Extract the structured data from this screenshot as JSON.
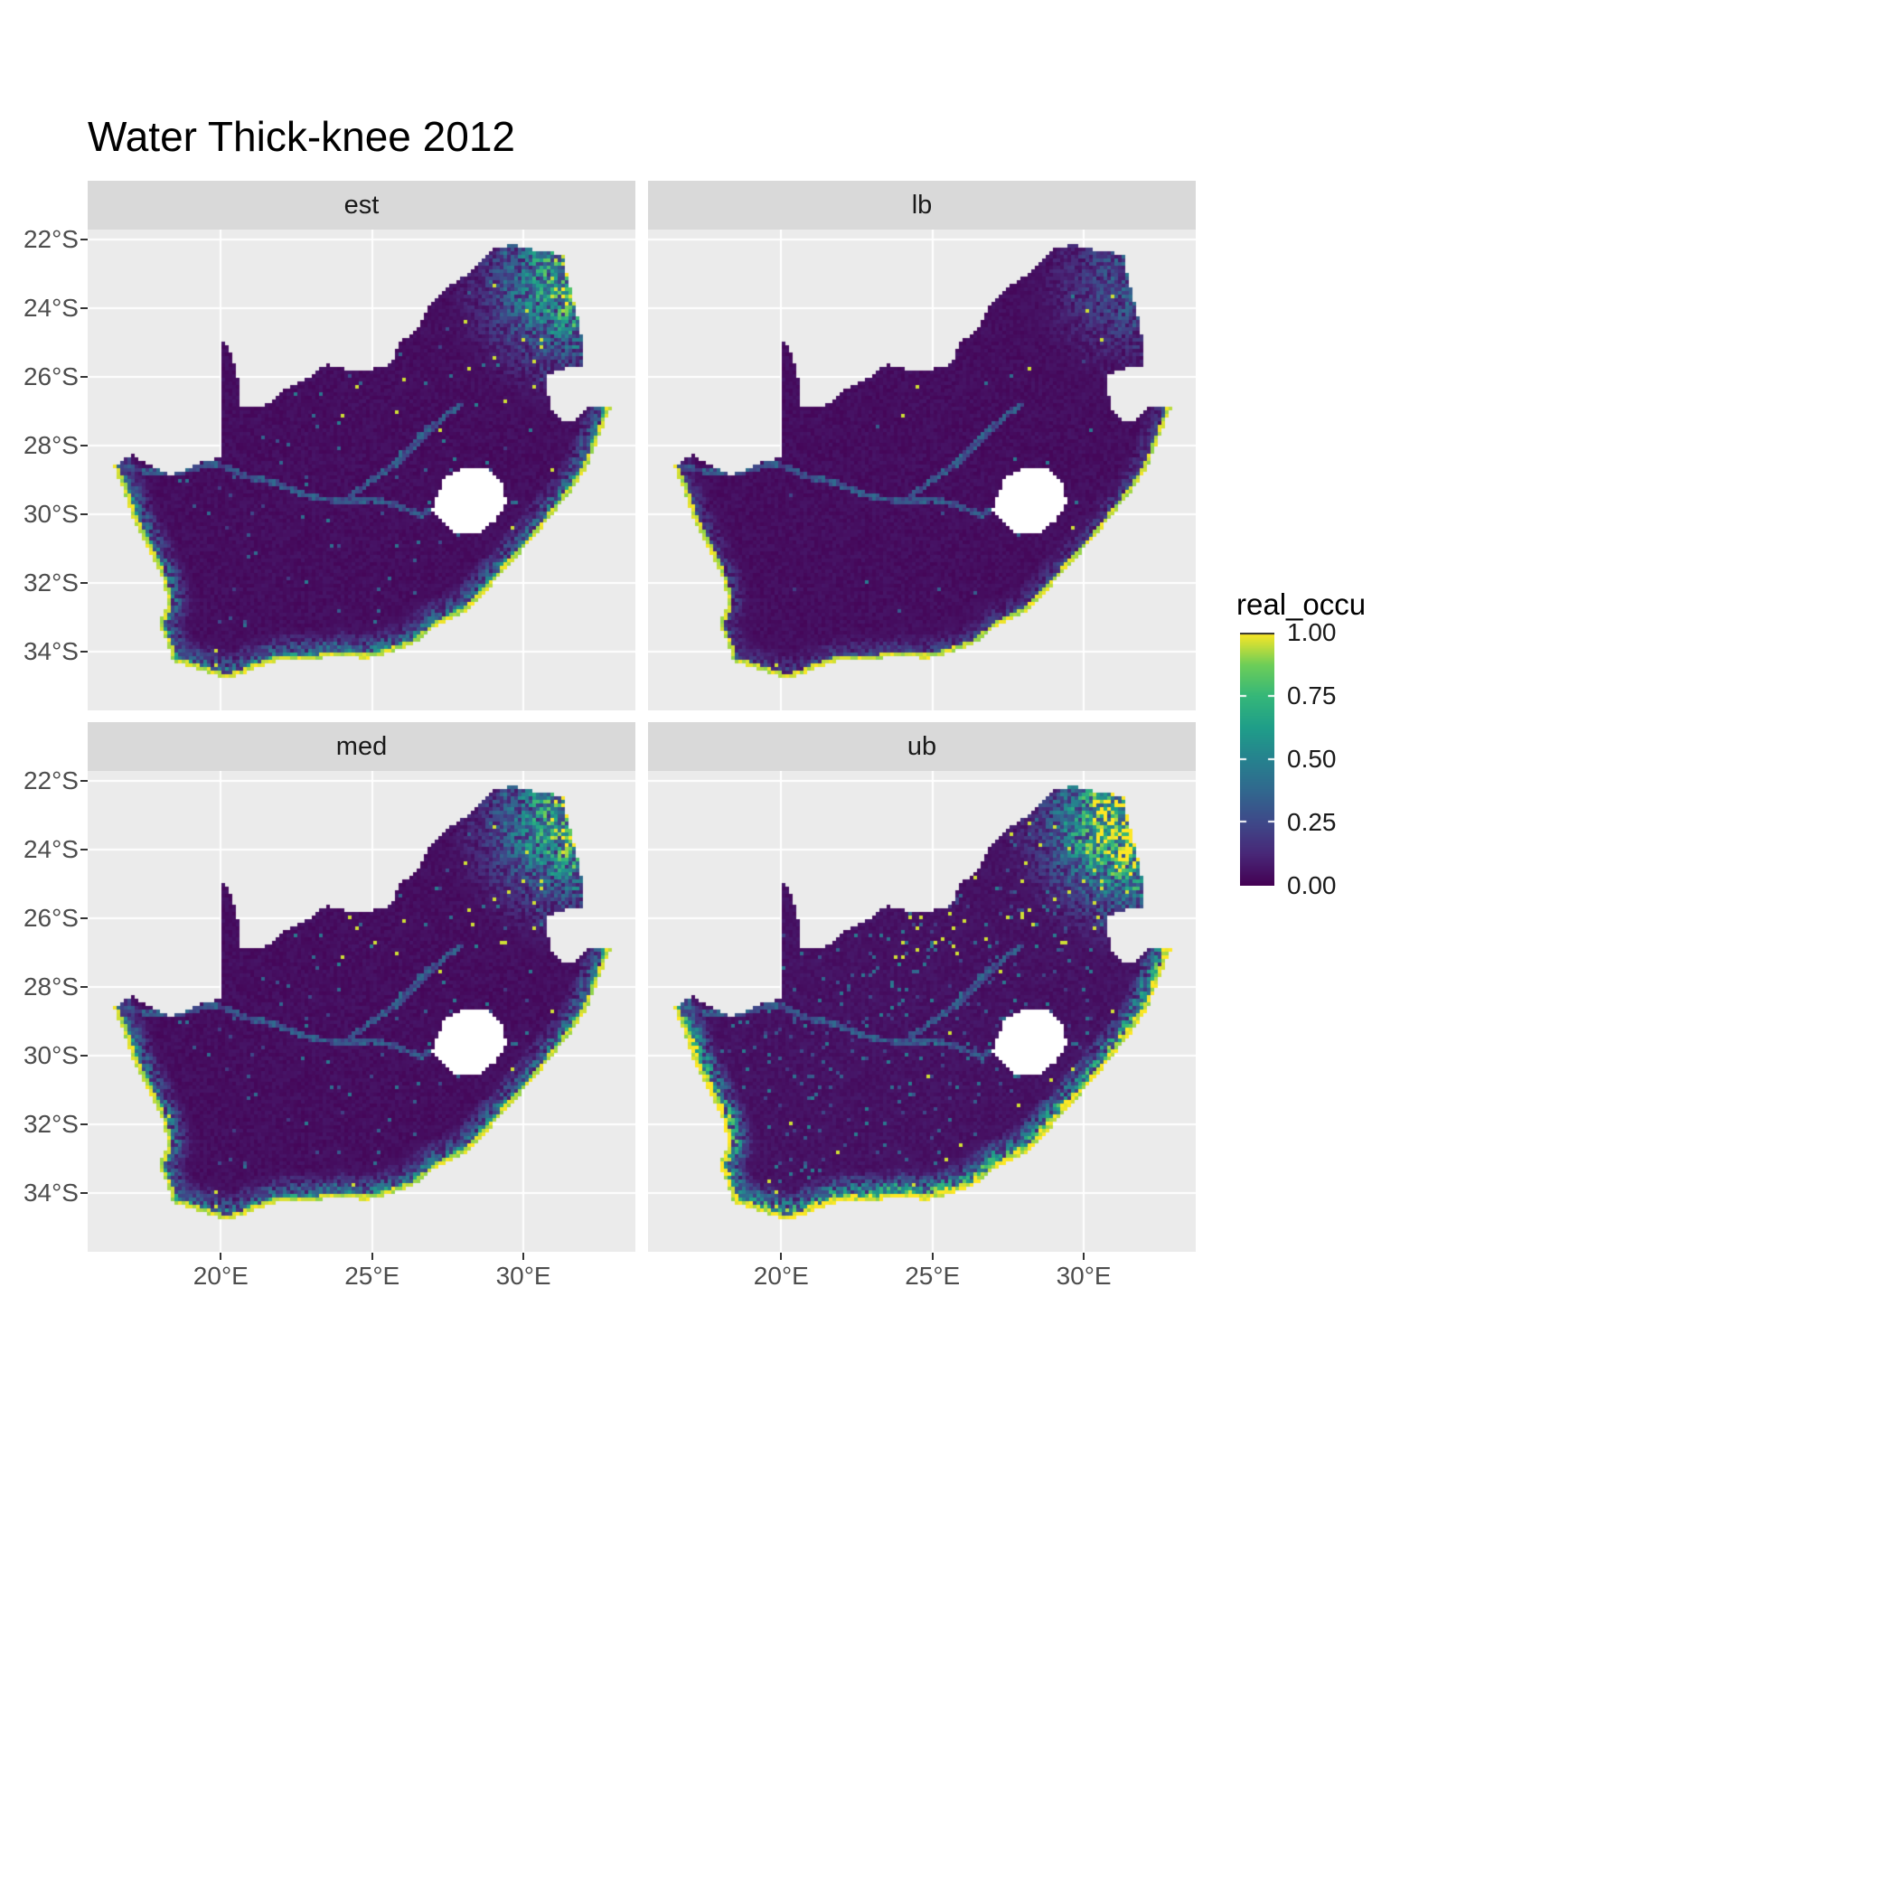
{
  "title": "Water Thick-knee 2012",
  "chart_data": {
    "type": "heatmap",
    "subtype": "faceted-raster-occupancy-map",
    "title": "Water Thick-knee 2012",
    "region": "South Africa",
    "facets": [
      {
        "label": "est",
        "coast": 1.0,
        "blob": 1.1,
        "dots": 1.0,
        "interior": 1.0
      },
      {
        "label": "lb",
        "coast": 0.5,
        "blob": 0.45,
        "dots": 0.4,
        "interior": 0.8
      },
      {
        "label": "med",
        "coast": 1.05,
        "blob": 1.15,
        "dots": 1.3,
        "interior": 1.05
      },
      {
        "label": "ub",
        "coast": 1.7,
        "blob": 1.6,
        "dots": 2.6,
        "interior": 1.7
      }
    ],
    "x_axis": {
      "ticks": [
        20,
        25,
        30
      ],
      "labels": [
        "20°E",
        "25°E",
        "30°E"
      ],
      "range": [
        15.6,
        33.7
      ]
    },
    "y_axis": {
      "ticks": [
        -22,
        -24,
        -26,
        -28,
        -30,
        -32,
        -34
      ],
      "labels": [
        "22°S",
        "24°S",
        "26°S",
        "28°S",
        "30°S",
        "32°S",
        "34°S"
      ],
      "range": [
        -21.7,
        -35.7
      ]
    },
    "legend": {
      "title": "real_occu",
      "labels": [
        "1.00",
        "0.75",
        "0.50",
        "0.25",
        "0.00"
      ],
      "breaks": [
        1,
        0.75,
        0.5,
        0.25,
        0
      ],
      "value_range": [
        0,
        1
      ]
    },
    "colors": {
      "panel_bg": "#EBEBEB",
      "strip_bg": "#D9D9D9",
      "grid": "#FFFFFF",
      "axis_text": "#4D4D4D",
      "tick": "#333333",
      "title_text": "#000000",
      "strip_text": "#1A1A1A",
      "na_fill": "#FFFFFF"
    },
    "viridis_anchors": [
      [
        0,
        "#440154"
      ],
      [
        0.125,
        "#482878"
      ],
      [
        0.25,
        "#3E4989"
      ],
      [
        0.375,
        "#31688E"
      ],
      [
        0.5,
        "#26828E"
      ],
      [
        0.625,
        "#1F9E89"
      ],
      [
        0.75,
        "#35B779"
      ],
      [
        0.875,
        "#6ECE58"
      ],
      [
        1,
        "#FDE725"
      ]
    ],
    "map": {
      "outline": [
        [
          16.45,
          -28.6
        ],
        [
          17.05,
          -28.25
        ],
        [
          17.65,
          -28.55
        ],
        [
          18.35,
          -28.88
        ],
        [
          19.2,
          -28.52
        ],
        [
          19.99,
          -28.35
        ],
        [
          19.99,
          -24.77
        ],
        [
          20.35,
          -25.35
        ],
        [
          20.62,
          -26.15
        ],
        [
          20.68,
          -26.85
        ],
        [
          21.4,
          -26.87
        ],
        [
          22.05,
          -26.4
        ],
        [
          22.9,
          -26.0
        ],
        [
          23.5,
          -25.62
        ],
        [
          24.2,
          -25.78
        ],
        [
          25.0,
          -25.77
        ],
        [
          25.6,
          -25.62
        ],
        [
          25.95,
          -24.95
        ],
        [
          26.5,
          -24.62
        ],
        [
          26.95,
          -23.85
        ],
        [
          27.5,
          -23.4
        ],
        [
          28.2,
          -22.95
        ],
        [
          29.05,
          -22.22
        ],
        [
          29.7,
          -22.15
        ],
        [
          30.4,
          -22.3
        ],
        [
          31.3,
          -22.42
        ],
        [
          31.6,
          -23.6
        ],
        [
          31.85,
          -24.4
        ],
        [
          31.98,
          -25.1
        ],
        [
          32.02,
          -25.65
        ],
        [
          31.4,
          -25.73
        ],
        [
          30.82,
          -25.9
        ],
        [
          30.78,
          -26.4
        ],
        [
          30.92,
          -26.9
        ],
        [
          31.15,
          -27.2
        ],
        [
          31.6,
          -27.33
        ],
        [
          31.98,
          -27.05
        ],
        [
          32.13,
          -26.86
        ],
        [
          32.55,
          -26.87
        ],
        [
          32.89,
          -26.86
        ],
        [
          32.55,
          -27.6
        ],
        [
          32.1,
          -28.6
        ],
        [
          31.6,
          -29.3
        ],
        [
          31.05,
          -29.9
        ],
        [
          30.4,
          -30.62
        ],
        [
          29.7,
          -31.3
        ],
        [
          28.9,
          -32.1
        ],
        [
          28.1,
          -32.8
        ],
        [
          27.2,
          -33.2
        ],
        [
          26.4,
          -33.75
        ],
        [
          25.65,
          -34.0
        ],
        [
          24.8,
          -34.2
        ],
        [
          23.8,
          -34.1
        ],
        [
          22.9,
          -34.25
        ],
        [
          22.1,
          -34.2
        ],
        [
          21.2,
          -34.45
        ],
        [
          20.3,
          -34.78
        ],
        [
          19.6,
          -34.62
        ],
        [
          18.9,
          -34.4
        ],
        [
          18.42,
          -34.32
        ],
        [
          18.3,
          -33.9
        ],
        [
          17.95,
          -33.2
        ],
        [
          18.25,
          -32.6
        ],
        [
          18.1,
          -31.9
        ],
        [
          17.6,
          -31.0
        ],
        [
          17.1,
          -30.1
        ],
        [
          16.8,
          -29.3
        ]
      ],
      "coast": [
        [
          32.89,
          -26.86
        ],
        [
          32.55,
          -27.6
        ],
        [
          32.1,
          -28.6
        ],
        [
          31.6,
          -29.3
        ],
        [
          31.05,
          -29.9
        ],
        [
          30.4,
          -30.62
        ],
        [
          29.7,
          -31.3
        ],
        [
          28.9,
          -32.1
        ],
        [
          28.1,
          -32.8
        ],
        [
          27.2,
          -33.2
        ],
        [
          26.4,
          -33.75
        ],
        [
          25.65,
          -34.0
        ],
        [
          24.8,
          -34.2
        ],
        [
          23.8,
          -34.1
        ],
        [
          22.9,
          -34.25
        ],
        [
          22.1,
          -34.2
        ],
        [
          21.2,
          -34.45
        ],
        [
          20.3,
          -34.78
        ],
        [
          19.6,
          -34.62
        ],
        [
          18.9,
          -34.4
        ],
        [
          18.42,
          -34.32
        ],
        [
          18.3,
          -33.9
        ],
        [
          17.95,
          -33.2
        ],
        [
          18.25,
          -32.6
        ],
        [
          18.1,
          -31.9
        ],
        [
          17.6,
          -31.0
        ],
        [
          17.1,
          -30.1
        ],
        [
          16.8,
          -29.3
        ],
        [
          16.45,
          -28.6
        ]
      ],
      "lesotho": [
        [
          27.05,
          -29.6
        ],
        [
          27.4,
          -28.95
        ],
        [
          28.05,
          -28.62
        ],
        [
          28.75,
          -28.6
        ],
        [
          29.3,
          -29.1
        ],
        [
          29.45,
          -29.65
        ],
        [
          29.1,
          -30.15
        ],
        [
          28.5,
          -30.55
        ],
        [
          27.8,
          -30.55
        ],
        [
          27.3,
          -30.2
        ],
        [
          27.0,
          -29.85
        ]
      ],
      "rivers": [
        [
          [
            16.55,
            -28.6
          ],
          [
            17.6,
            -28.75
          ],
          [
            18.7,
            -28.75
          ],
          [
            19.8,
            -28.5
          ],
          [
            20.9,
            -28.9
          ],
          [
            21.9,
            -29.1
          ],
          [
            23.0,
            -29.5
          ],
          [
            24.1,
            -29.6
          ],
          [
            25.0,
            -29.55
          ],
          [
            25.7,
            -29.7
          ],
          [
            26.6,
            -30.0
          ],
          [
            27.0,
            -29.85
          ]
        ],
        [
          [
            24.1,
            -29.6
          ],
          [
            24.9,
            -29.05
          ],
          [
            25.8,
            -28.5
          ],
          [
            26.6,
            -27.8
          ],
          [
            27.3,
            -27.2
          ],
          [
            27.9,
            -26.8
          ]
        ]
      ]
    }
  }
}
